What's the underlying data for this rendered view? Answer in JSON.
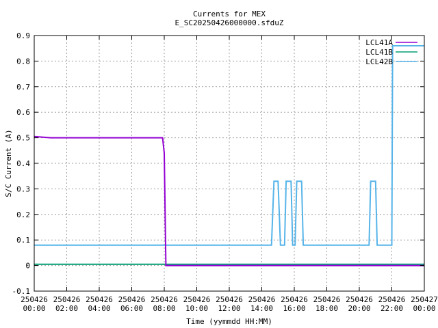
{
  "chart_data": {
    "type": "line",
    "title": "Currents for MEX",
    "subtitle": "E_SC20250426000000.sfduZ",
    "xlabel": "Time (yymmdd HH:MM)",
    "ylabel": "S/C Current (A)",
    "xlim_hours": [
      0,
      24
    ],
    "ylim": [
      -0.1,
      0.9
    ],
    "grid": true,
    "legend_position": "top-right",
    "x_ticks": [
      {
        "h": 0,
        "date": "250426",
        "time": "00:00"
      },
      {
        "h": 2,
        "date": "250426",
        "time": "02:00"
      },
      {
        "h": 4,
        "date": "250426",
        "time": "04:00"
      },
      {
        "h": 6,
        "date": "250426",
        "time": "06:00"
      },
      {
        "h": 8,
        "date": "250426",
        "time": "08:00"
      },
      {
        "h": 10,
        "date": "250426",
        "time": "10:00"
      },
      {
        "h": 12,
        "date": "250426",
        "time": "12:00"
      },
      {
        "h": 14,
        "date": "250426",
        "time": "14:00"
      },
      {
        "h": 16,
        "date": "250426",
        "time": "16:00"
      },
      {
        "h": 18,
        "date": "250426",
        "time": "18:00"
      },
      {
        "h": 20,
        "date": "250426",
        "time": "20:00"
      },
      {
        "h": 22,
        "date": "250426",
        "time": "22:00"
      },
      {
        "h": 24,
        "date": "250427",
        "time": "00:00"
      }
    ],
    "y_ticks": [
      -0.1,
      0,
      0.1,
      0.2,
      0.3,
      0.4,
      0.5,
      0.6,
      0.7,
      0.8,
      0.9
    ],
    "y_tick_labels": [
      "-0.1",
      "0",
      "0.1",
      "0.2",
      "0.3",
      "0.4",
      "0.5",
      "0.6",
      "0.7",
      "0.8",
      "0.9"
    ],
    "series": [
      {
        "name": "LCL41A",
        "color": "#9400d3",
        "points": [
          [
            0,
            0.505
          ],
          [
            1,
            0.5
          ],
          [
            2,
            0.5
          ],
          [
            3,
            0.5
          ],
          [
            4,
            0.5
          ],
          [
            5,
            0.5
          ],
          [
            6,
            0.5
          ],
          [
            7,
            0.5
          ],
          [
            7.9,
            0.5
          ],
          [
            8.0,
            0.44
          ],
          [
            8.1,
            0.0
          ],
          [
            10,
            0.0
          ],
          [
            14,
            0.0
          ],
          [
            18,
            0.0
          ],
          [
            22,
            0.0
          ],
          [
            24,
            0.0
          ]
        ]
      },
      {
        "name": "LCL41B",
        "color": "#009e73",
        "points": [
          [
            0,
            0.005
          ],
          [
            4,
            0.005
          ],
          [
            8,
            0.005
          ],
          [
            12,
            0.005
          ],
          [
            16,
            0.005
          ],
          [
            20,
            0.005
          ],
          [
            24,
            0.005
          ]
        ]
      },
      {
        "name": "LCL42B",
        "color": "#56b4e9",
        "points": [
          [
            0,
            0.08
          ],
          [
            14.6,
            0.08
          ],
          [
            14.75,
            0.33
          ],
          [
            15.0,
            0.33
          ],
          [
            15.15,
            0.08
          ],
          [
            15.4,
            0.08
          ],
          [
            15.5,
            0.33
          ],
          [
            15.8,
            0.33
          ],
          [
            15.9,
            0.08
          ],
          [
            16.05,
            0.08
          ],
          [
            16.15,
            0.33
          ],
          [
            16.45,
            0.33
          ],
          [
            16.55,
            0.08
          ],
          [
            20.6,
            0.08
          ],
          [
            20.7,
            0.33
          ],
          [
            21.0,
            0.33
          ],
          [
            21.1,
            0.08
          ],
          [
            22.0,
            0.08
          ],
          [
            22.05,
            0.86
          ],
          [
            24,
            0.86
          ]
        ]
      }
    ]
  }
}
